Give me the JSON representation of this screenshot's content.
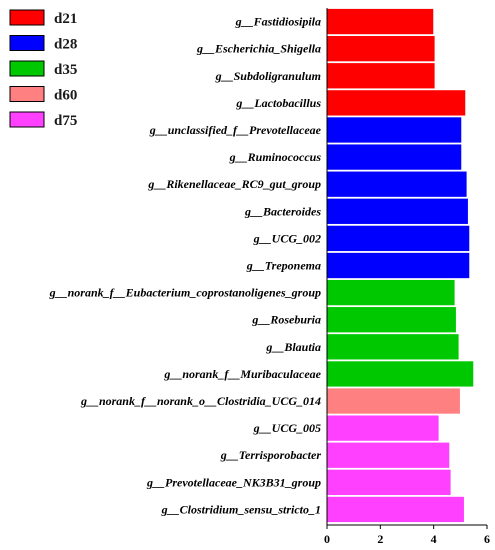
{
  "chart_data": {
    "type": "bar",
    "orientation": "horizontal",
    "categories": [
      "g__Fastidiosipila",
      "g__Escherichia_Shigella",
      "g__Subdoligranulum",
      "g__Lactobacillus",
      "g__unclassified_f__Prevotellaceae",
      "g__Ruminococcus",
      "g__Rikenellaceae_RC9_gut_group",
      "g__Bacteroides",
      "g__UCG_002",
      "g__Treponema",
      "g__norank_f__Eubacterium_coprostanoligenes_group",
      "g__Roseburia",
      "g__Blautia",
      "g__norank_f__Muribaculaceae",
      "g__norank_f__norank_o__Clostridia_UCG_014",
      "g__UCG_005",
      "g__Terrisporobacter",
      "g__Prevotellaceae_NK3B31_group",
      "g__Clostridium_sensu_stricto_1"
    ],
    "values": [
      4.0,
      4.05,
      4.05,
      5.2,
      5.05,
      5.05,
      5.25,
      5.3,
      5.35,
      5.35,
      4.8,
      4.85,
      4.95,
      5.5,
      5.0,
      4.2,
      4.6,
      4.65,
      5.15
    ],
    "groups": [
      "d21",
      "d21",
      "d21",
      "d21",
      "d28",
      "d28",
      "d28",
      "d28",
      "d28",
      "d28",
      "d35",
      "d35",
      "d35",
      "d35",
      "d60",
      "d75",
      "d75",
      "d75",
      "d75"
    ],
    "xlim": [
      0,
      6
    ],
    "xticks": [
      "0",
      "2",
      "4",
      "6"
    ],
    "xlabel": "",
    "ylabel": "",
    "title": "",
    "grid": false,
    "legend_position": "top-left",
    "legend": [
      {
        "name": "d21",
        "color": "#ff0000"
      },
      {
        "name": "d28",
        "color": "#0000ff"
      },
      {
        "name": "d35",
        "color": "#00c800"
      },
      {
        "name": "d60",
        "color": "#ff8080"
      },
      {
        "name": "d75",
        "color": "#ff40ff"
      }
    ]
  }
}
